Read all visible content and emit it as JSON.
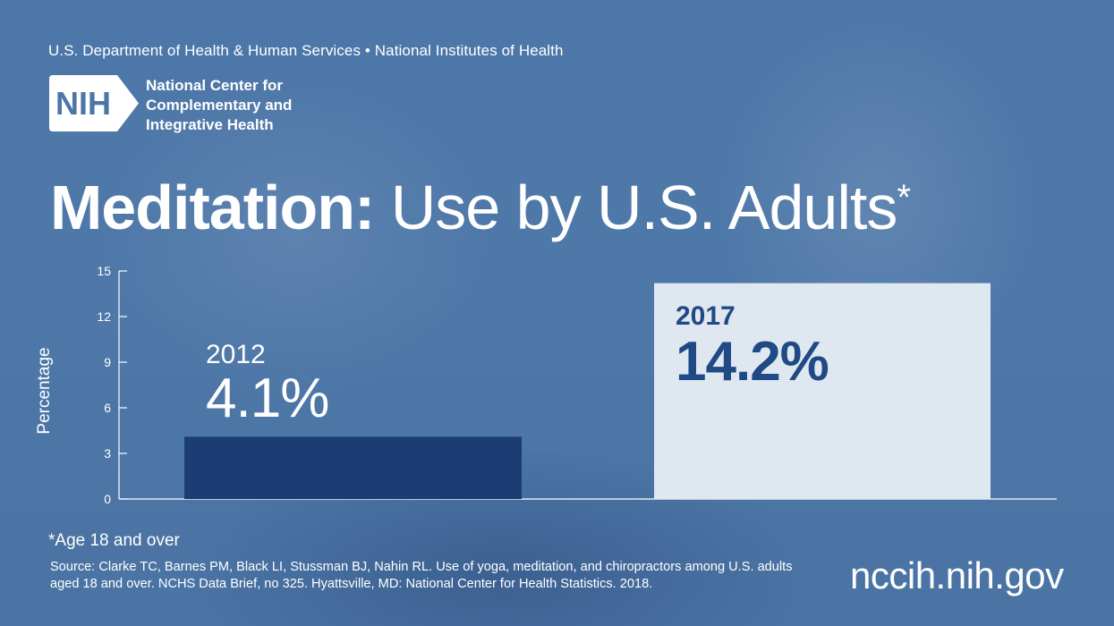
{
  "header": {
    "agency": "U.S. Department of Health & Human Services • National Institutes of Health",
    "logo_text": "NIH",
    "center_name": [
      "National Center for",
      "Complementary and",
      "Integrative Health"
    ]
  },
  "title": {
    "bold": "Meditation:",
    "rest": "Use by U.S. Adults",
    "marker": "*"
  },
  "chart_data": {
    "type": "bar",
    "categories": [
      "2012",
      "2017"
    ],
    "values": [
      4.1,
      14.2
    ],
    "value_labels": [
      "4.1%",
      "14.2%"
    ],
    "ylabel": "Percentage",
    "xlabel": "",
    "ylim": [
      0,
      15
    ],
    "yticks": [
      0,
      3,
      6,
      9,
      12,
      15
    ],
    "bar_colors": [
      "#1c3d73",
      "#dfe7f1"
    ],
    "label_colors": [
      "#ffffff",
      "#1f4a85"
    ],
    "grid": false
  },
  "footnote": "*Age 18 and over",
  "source": "Source: Clarke TC, Barnes PM, Black LI, Stussman BJ, Nahin RL. Use of yoga, meditation, and chiropractors among U.S. adults aged 18 and over. NCHS Data Brief, no 325. Hyattsville, MD: National Center for Health Statistics. 2018.",
  "website": "nccih.nih.gov"
}
